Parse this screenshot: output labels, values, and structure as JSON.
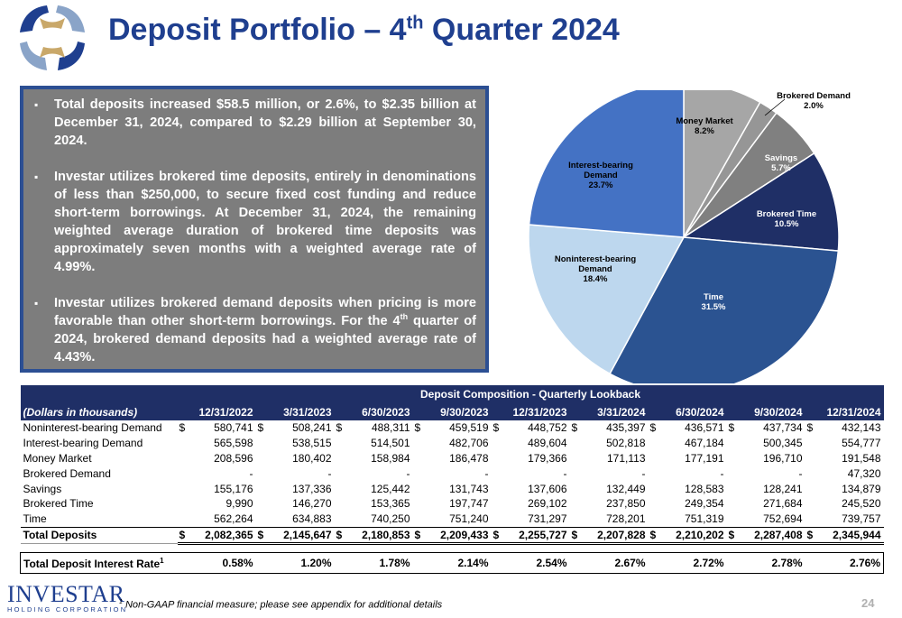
{
  "header": {
    "title_main": "Deposit Portfolio – 4",
    "title_sup": "th",
    "title_end": " Quarter 2024"
  },
  "bullets": [
    {
      "parts": [
        "Total deposits increased $58.5 million, or 2.6%, to $2.35 billion at December 31, 2024, compared to $2.29 billion at September 30, 2024."
      ]
    },
    {
      "parts": [
        "Investar utilizes brokered time deposits, entirely in denominations of less than $250,000, to secure fixed cost funding and reduce short-term borrowings. At December 31, 2024, the remaining weighted average duration of brokered time deposits was approximately seven months with a weighted average rate of 4.99%."
      ]
    },
    {
      "before": "Investar utilizes brokered demand deposits when pricing is more favorable than other short-term borrowings. For the 4",
      "sup": "th",
      "after": " quarter of 2024, brokered demand deposits had a weighted average rate of 4.43%."
    }
  ],
  "chart_data": {
    "type": "pie",
    "slices": [
      {
        "label": "Money Market",
        "value": 8.2,
        "display": "8.2%",
        "color": "#a6a6a6"
      },
      {
        "label": "Brokered Demand",
        "value": 2.0,
        "display": "2.0%",
        "color": "#969696"
      },
      {
        "label": "Savings",
        "value": 5.7,
        "display": "5.7%",
        "color": "#808080"
      },
      {
        "label": "Brokered Time",
        "value": 10.5,
        "display": "10.5%",
        "color": "#1f2f66"
      },
      {
        "label": "Time",
        "value": 31.5,
        "display": "31.5%",
        "color": "#2b5391"
      },
      {
        "label": "Noninterest-bearing Demand",
        "value": 18.4,
        "display": "18.4%",
        "color": "#bdd7ee"
      },
      {
        "label": "Interest-bearing Demand",
        "value": 23.7,
        "display": "23.7%",
        "color": "#4472c4"
      }
    ]
  },
  "table": {
    "title": "Deposit Composition - Quarterly Lookback",
    "label_header": "(Dollars in thousands)",
    "dates": [
      "12/31/2022",
      "3/31/2023",
      "6/30/2023",
      "9/30/2023",
      "12/31/2023",
      "3/31/2024",
      "6/30/2024",
      "9/30/2024",
      "12/31/2024"
    ],
    "rows": [
      {
        "label": "Noninterest-bearing Demand",
        "dollar": true,
        "values": [
          "580,741",
          "508,241",
          "488,311",
          "459,519",
          "448,752",
          "435,397",
          "436,571",
          "437,734",
          "432,143"
        ]
      },
      {
        "label": "Interest-bearing Demand",
        "values": [
          "565,598",
          "538,515",
          "514,501",
          "482,706",
          "489,604",
          "502,818",
          "467,184",
          "500,345",
          "554,777"
        ]
      },
      {
        "label": "Money Market",
        "values": [
          "208,596",
          "180,402",
          "158,984",
          "186,478",
          "179,366",
          "171,113",
          "177,191",
          "196,710",
          "191,548"
        ]
      },
      {
        "label": "Brokered Demand",
        "values": [
          "-",
          "-",
          "-",
          "-",
          "-",
          "-",
          "-",
          "-",
          "47,320"
        ]
      },
      {
        "label": "Savings",
        "values": [
          "155,176",
          "137,336",
          "125,442",
          "131,743",
          "137,606",
          "132,449",
          "128,583",
          "128,241",
          "134,879"
        ]
      },
      {
        "label": "Brokered Time",
        "values": [
          "9,990",
          "146,270",
          "153,365",
          "197,747",
          "269,102",
          "237,850",
          "249,354",
          "271,684",
          "245,520"
        ]
      },
      {
        "label": "Time",
        "values": [
          "562,264",
          "634,883",
          "740,250",
          "751,240",
          "731,297",
          "728,201",
          "751,319",
          "752,694",
          "739,757"
        ]
      }
    ],
    "total": {
      "label": "Total Deposits",
      "values": [
        "2,082,365",
        "2,145,647",
        "2,180,853",
        "2,209,433",
        "2,255,727",
        "2,207,828",
        "2,210,202",
        "2,287,408",
        "2,345,944"
      ]
    },
    "rate": {
      "label": "Total Deposit Interest Rate",
      "sup": "1",
      "values": [
        "0.58%",
        "1.20%",
        "1.78%",
        "2.14%",
        "2.54%",
        "2.67%",
        "2.72%",
        "2.78%",
        "2.76%"
      ]
    },
    "dollar_sign": "$"
  },
  "footer": {
    "logo_name": "INVESTAR",
    "logo_sub": "HOLDING CORPORATION",
    "footnote_sup": "1",
    "footnote": " Non-GAAP financial measure; please see appendix for additional details",
    "page_number": "24"
  }
}
